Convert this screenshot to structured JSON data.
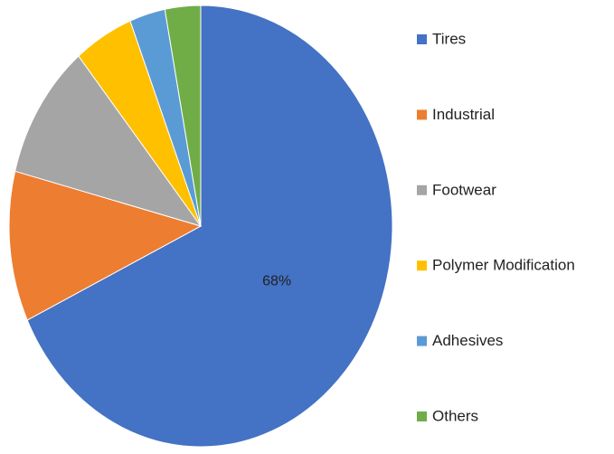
{
  "chart_data": {
    "type": "pie",
    "categories": [
      "Tires",
      "Industrial",
      "Footwear",
      "Polymer Modification",
      "Adhesives",
      "Others"
    ],
    "values": [
      68,
      11,
      10,
      5,
      3,
      3
    ],
    "value_labels": [
      "68%",
      null,
      null,
      null,
      null,
      null
    ],
    "colors": [
      "#4472c4",
      "#ed7d31",
      "#a5a5a5",
      "#ffc000",
      "#5b9bd5",
      "#70ad47"
    ],
    "legend": "right"
  }
}
